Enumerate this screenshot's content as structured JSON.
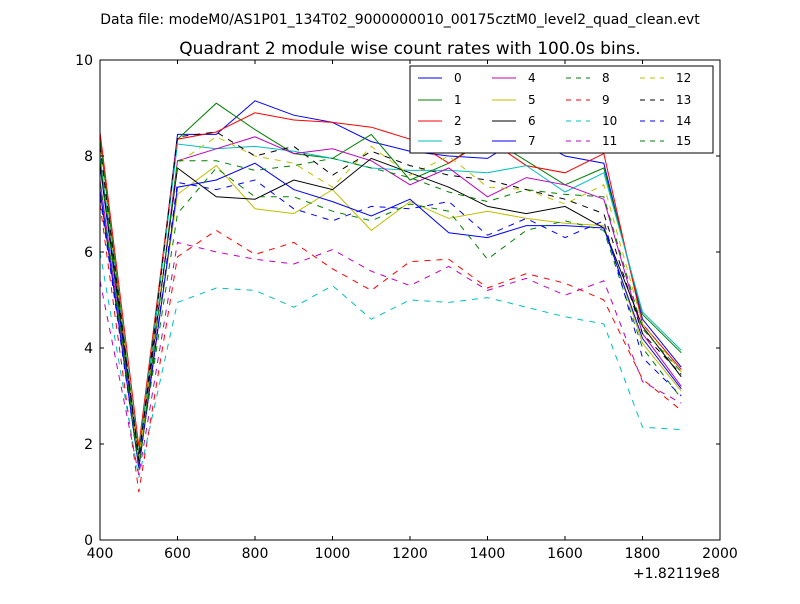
{
  "chart_data": {
    "type": "line",
    "suptitle": "Data file: modeM0/AS1P01_134T02_9000000010_00175cztM0_level2_quad_clean.evt",
    "title": "Quadrant 2 module wise count rates with 100.0s bins.",
    "xlabel": "",
    "ylabel": "",
    "xlim": [
      400,
      2000
    ],
    "ylim": [
      0,
      10
    ],
    "x_ticks": [
      400,
      600,
      800,
      1000,
      1200,
      1400,
      1600,
      1800,
      2000
    ],
    "x_tick_labels": [
      "400",
      "600",
      "800",
      "1000",
      "1200",
      "1400",
      "1600",
      "1800",
      "2000"
    ],
    "y_ticks": [
      0,
      2,
      4,
      6,
      8,
      10
    ],
    "y_tick_labels": [
      "0",
      "2",
      "4",
      "6",
      "8",
      "10"
    ],
    "x_offset_label": "+1.82119e8",
    "grid": false,
    "legend_position": "top-right",
    "legend_columns": 4,
    "x": [
      400,
      500,
      600,
      700,
      800,
      900,
      1000,
      1100,
      1200,
      1300,
      1400,
      1500,
      1600,
      1700,
      1800,
      1900
    ],
    "series": [
      {
        "name": "0",
        "color": "#0000ff",
        "style": "solid",
        "values": [
          7.8,
          1.6,
          8.45,
          8.45,
          9.15,
          8.85,
          8.7,
          8.3,
          8.1,
          8.0,
          7.95,
          8.45,
          8.0,
          7.85,
          4.6,
          3.6
        ]
      },
      {
        "name": "1",
        "color": "#008000",
        "style": "solid",
        "values": [
          8.35,
          1.7,
          8.35,
          9.1,
          8.55,
          8.05,
          7.95,
          8.45,
          7.5,
          7.85,
          8.4,
          7.9,
          7.4,
          7.75,
          4.7,
          3.9
        ]
      },
      {
        "name": "2",
        "color": "#ff0000",
        "style": "solid",
        "values": [
          8.5,
          1.95,
          8.35,
          8.5,
          8.9,
          8.75,
          8.7,
          8.6,
          8.35,
          7.85,
          8.35,
          7.8,
          7.65,
          8.05,
          4.5,
          3.55
        ]
      },
      {
        "name": "3",
        "color": "#00bfbf",
        "style": "solid",
        "values": [
          8.0,
          1.8,
          8.25,
          8.15,
          8.2,
          8.1,
          7.95,
          7.75,
          7.7,
          7.7,
          7.65,
          7.8,
          7.25,
          7.65,
          4.75,
          3.95
        ]
      },
      {
        "name": "4",
        "color": "#bf00bf",
        "style": "solid",
        "values": [
          7.5,
          1.55,
          7.9,
          8.15,
          8.4,
          8.05,
          8.15,
          7.9,
          7.4,
          7.75,
          7.15,
          7.55,
          7.4,
          7.1,
          4.3,
          3.2
        ]
      },
      {
        "name": "5",
        "color": "#bfbf00",
        "style": "solid",
        "values": [
          7.2,
          1.65,
          7.2,
          7.8,
          6.9,
          6.8,
          7.3,
          6.45,
          7.05,
          6.7,
          6.85,
          6.7,
          6.6,
          6.55,
          4.1,
          3.1
        ]
      },
      {
        "name": "6",
        "color": "#000000",
        "style": "solid",
        "values": [
          7.85,
          1.75,
          7.75,
          7.15,
          7.1,
          7.5,
          7.3,
          7.95,
          7.65,
          7.35,
          6.95,
          6.8,
          6.95,
          6.5,
          4.45,
          3.4
        ]
      },
      {
        "name": "7",
        "color": "#0000ff",
        "style": "solid",
        "values": [
          7.3,
          1.5,
          7.35,
          7.5,
          7.85,
          7.3,
          7.05,
          6.75,
          7.1,
          6.4,
          6.3,
          6.55,
          6.55,
          6.5,
          4.2,
          3.15
        ]
      },
      {
        "name": "8",
        "color": "#008000",
        "style": "dashed",
        "values": [
          7.45,
          1.6,
          6.8,
          7.75,
          7.15,
          7.15,
          6.85,
          6.65,
          7.0,
          6.85,
          5.85,
          6.45,
          6.65,
          6.45,
          4.0,
          2.95
        ]
      },
      {
        "name": "9",
        "color": "#ff0000",
        "style": "dashed",
        "values": [
          7.0,
          1.0,
          5.9,
          6.45,
          5.95,
          6.2,
          5.65,
          5.2,
          5.8,
          5.85,
          5.25,
          5.55,
          5.35,
          5.0,
          3.35,
          2.7
        ]
      },
      {
        "name": "10",
        "color": "#00bfbf",
        "style": "dashed",
        "values": [
          6.0,
          1.3,
          4.95,
          5.25,
          5.2,
          4.85,
          5.3,
          4.6,
          5.0,
          4.95,
          5.05,
          4.85,
          4.65,
          4.5,
          2.35,
          2.3
        ]
      },
      {
        "name": "11",
        "color": "#bf00bf",
        "style": "dashed",
        "values": [
          5.4,
          1.35,
          6.2,
          6.0,
          5.85,
          5.75,
          6.05,
          5.6,
          5.3,
          5.7,
          5.2,
          5.45,
          5.1,
          5.4,
          3.3,
          2.85
        ]
      },
      {
        "name": "12",
        "color": "#bfbf00",
        "style": "dashed",
        "values": [
          8.15,
          1.7,
          7.85,
          8.4,
          8.0,
          7.85,
          7.35,
          8.2,
          7.6,
          8.0,
          7.35,
          7.3,
          7.0,
          7.4,
          4.5,
          3.5
        ]
      },
      {
        "name": "13",
        "color": "#000000",
        "style": "dashed",
        "values": [
          8.2,
          1.65,
          8.4,
          8.5,
          8.0,
          8.2,
          7.6,
          8.1,
          7.8,
          7.6,
          7.5,
          7.3,
          7.1,
          6.8,
          4.3,
          3.45
        ]
      },
      {
        "name": "14",
        "color": "#0000ff",
        "style": "dashed",
        "values": [
          7.15,
          1.5,
          7.45,
          7.3,
          7.5,
          6.9,
          6.65,
          6.95,
          6.9,
          7.05,
          6.35,
          6.7,
          6.3,
          6.65,
          3.8,
          3.0
        ]
      },
      {
        "name": "15",
        "color": "#008000",
        "style": "dashed",
        "values": [
          7.9,
          1.45,
          7.9,
          7.9,
          7.7,
          7.8,
          7.95,
          7.75,
          7.55,
          7.25,
          7.05,
          7.3,
          7.2,
          7.15,
          4.4,
          3.5
        ]
      }
    ]
  }
}
